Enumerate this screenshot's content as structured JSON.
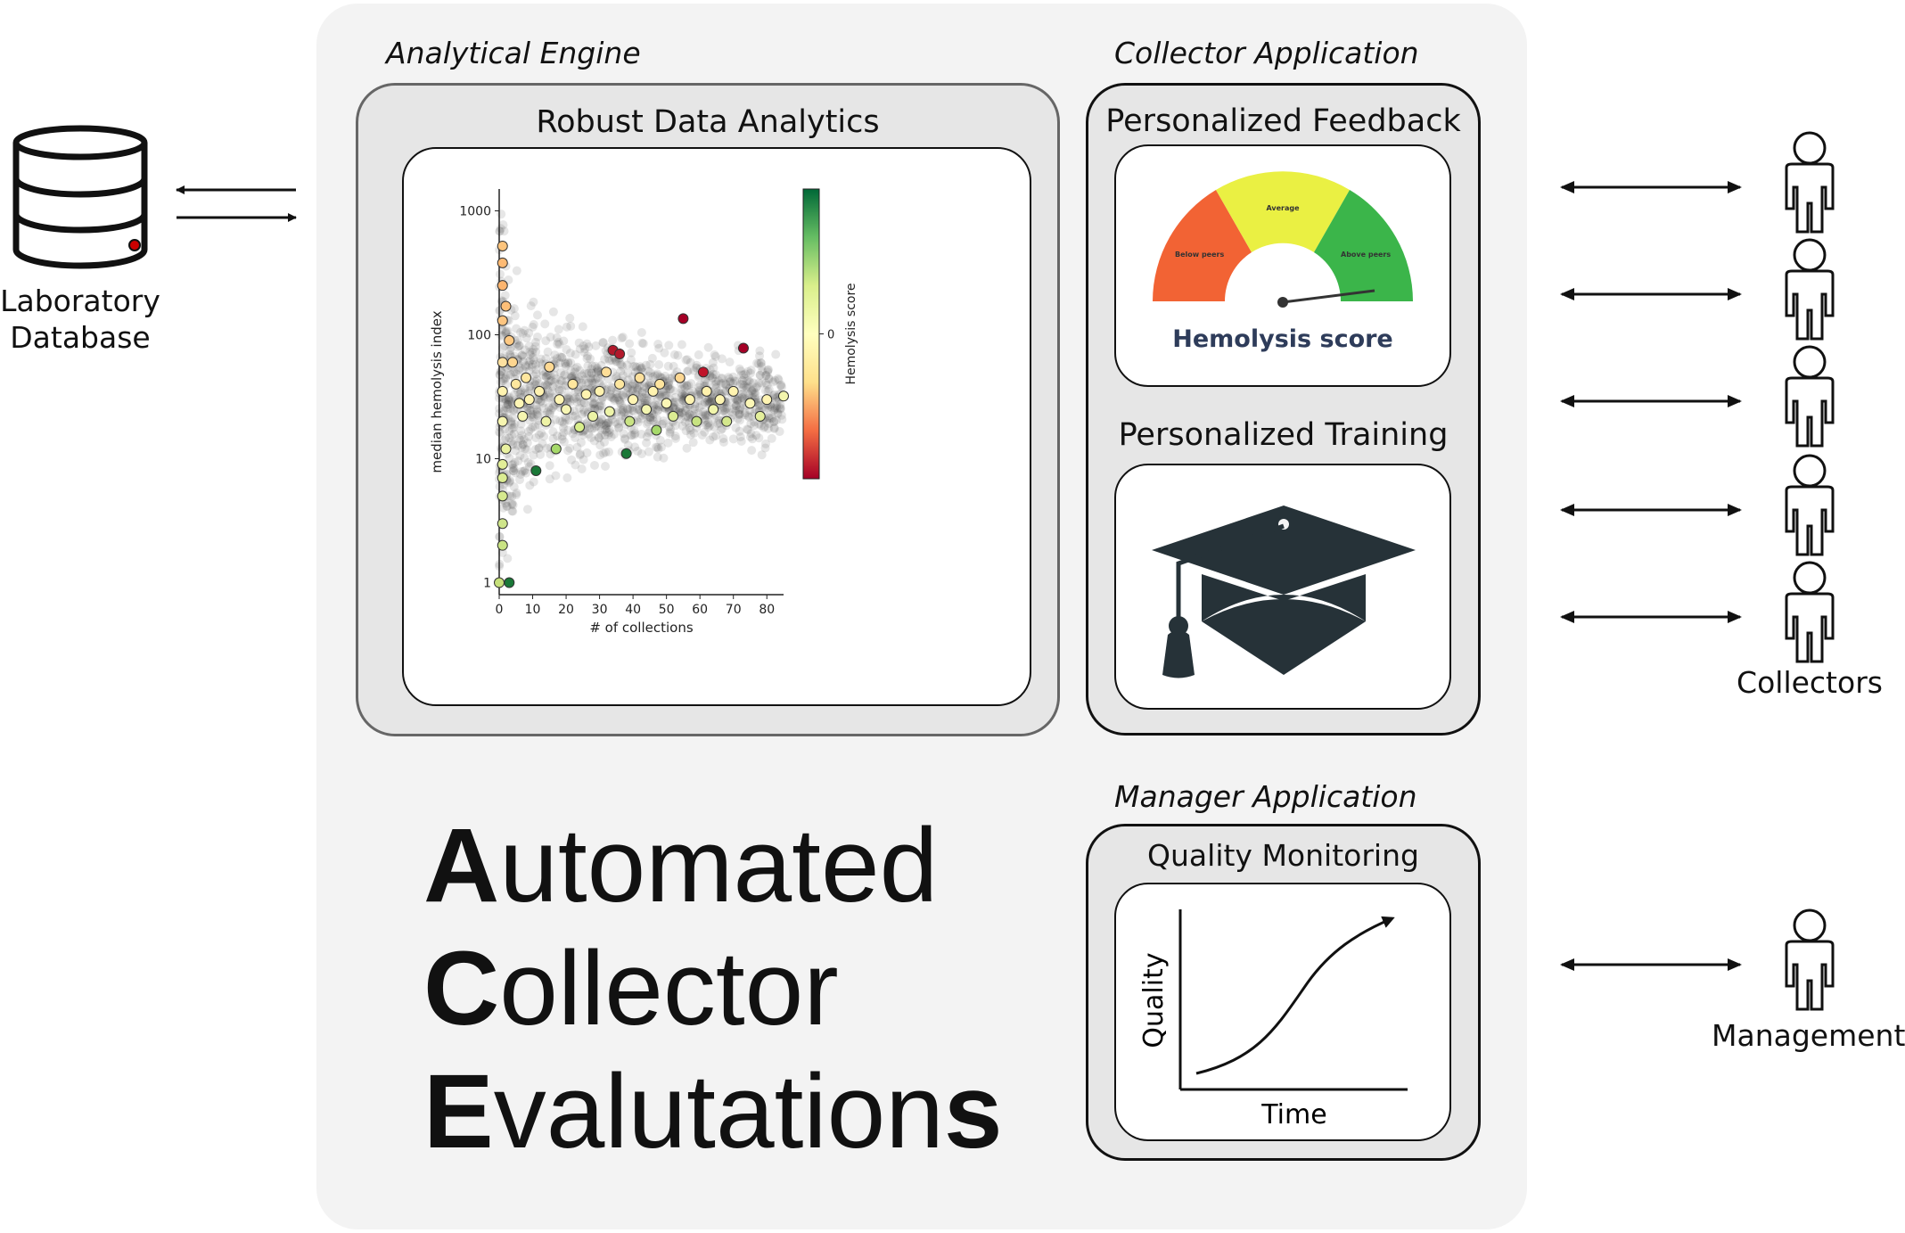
{
  "database": {
    "label_line1": "Laboratory",
    "label_line2": "Database"
  },
  "analytical_engine": {
    "section_label": "Analytical Engine",
    "box_title": "Robust Data Analytics"
  },
  "chart_data": {
    "type": "scatter",
    "xlabel": "# of collections",
    "ylabel": "median hemolysis index",
    "x_ticks": [
      "0",
      "10",
      "20",
      "30",
      "40",
      "50",
      "60",
      "70",
      "80"
    ],
    "y_ticks": [
      "1",
      "10",
      "100",
      "1000"
    ],
    "y_scale": "log",
    "xlim": [
      0,
      85
    ],
    "ylim": [
      0.8,
      1500
    ],
    "colorbar": {
      "label": "Hemolysis score",
      "tick": "0",
      "colormap": [
        "#a50026",
        "#f46d43",
        "#fee08b",
        "#ffffbf",
        "#d9ef8b",
        "#66bd63",
        "#006837"
      ]
    },
    "points": [
      {
        "x": 0,
        "y": 1,
        "c": "#c6e07a"
      },
      {
        "x": 3,
        "y": 1,
        "c": "#1a7837"
      },
      {
        "x": 1,
        "y": 2,
        "c": "#c9e383"
      },
      {
        "x": 1,
        "y": 3,
        "c": "#cfe58a"
      },
      {
        "x": 1,
        "y": 5,
        "c": "#d6e98e"
      },
      {
        "x": 1,
        "y": 7,
        "c": "#dbec92"
      },
      {
        "x": 1,
        "y": 9,
        "c": "#e2ee98"
      },
      {
        "x": 2,
        "y": 12,
        "c": "#e9f1a0"
      },
      {
        "x": 1,
        "y": 20,
        "c": "#f6f5b0"
      },
      {
        "x": 1,
        "y": 35,
        "c": "#fff3b0"
      },
      {
        "x": 1,
        "y": 60,
        "c": "#fde0a0"
      },
      {
        "x": 1,
        "y": 130,
        "c": "#fdc580"
      },
      {
        "x": 1,
        "y": 250,
        "c": "#fdb56f"
      },
      {
        "x": 1,
        "y": 380,
        "c": "#fdba74"
      },
      {
        "x": 1,
        "y": 520,
        "c": "#fdc47c"
      },
      {
        "x": 2,
        "y": 170,
        "c": "#fdbf78"
      },
      {
        "x": 3,
        "y": 90,
        "c": "#fdc983"
      },
      {
        "x": 4,
        "y": 60,
        "c": "#fed690"
      },
      {
        "x": 5,
        "y": 40,
        "c": "#fee79e"
      },
      {
        "x": 6,
        "y": 28,
        "c": "#fff6b5"
      },
      {
        "x": 7,
        "y": 22,
        "c": "#f5f5b0"
      },
      {
        "x": 8,
        "y": 45,
        "c": "#fee69e"
      },
      {
        "x": 9,
        "y": 30,
        "c": "#fff4b2"
      },
      {
        "x": 11,
        "y": 8,
        "c": "#1a7837"
      },
      {
        "x": 12,
        "y": 35,
        "c": "#fff2b0"
      },
      {
        "x": 14,
        "y": 20,
        "c": "#eef3a6"
      },
      {
        "x": 15,
        "y": 55,
        "c": "#fed993"
      },
      {
        "x": 17,
        "y": 12,
        "c": "#a6d96a"
      },
      {
        "x": 18,
        "y": 30,
        "c": "#fff5b3"
      },
      {
        "x": 20,
        "y": 25,
        "c": "#f7f6b4"
      },
      {
        "x": 22,
        "y": 40,
        "c": "#fee69e"
      },
      {
        "x": 24,
        "y": 18,
        "c": "#d9ef8b"
      },
      {
        "x": 26,
        "y": 33,
        "c": "#fff3b0"
      },
      {
        "x": 28,
        "y": 22,
        "c": "#ecf3a5"
      },
      {
        "x": 30,
        "y": 35,
        "c": "#fff2ae"
      },
      {
        "x": 32,
        "y": 50,
        "c": "#fede98"
      },
      {
        "x": 33,
        "y": 24,
        "c": "#eef4a8"
      },
      {
        "x": 34,
        "y": 75,
        "c": "#b2182b"
      },
      {
        "x": 36,
        "y": 70,
        "c": "#b2182b"
      },
      {
        "x": 36,
        "y": 40,
        "c": "#fee79f"
      },
      {
        "x": 38,
        "y": 11,
        "c": "#1a7837"
      },
      {
        "x": 39,
        "y": 20,
        "c": "#c9e383"
      },
      {
        "x": 40,
        "y": 30,
        "c": "#fff4b2"
      },
      {
        "x": 42,
        "y": 45,
        "c": "#fde09c"
      },
      {
        "x": 44,
        "y": 25,
        "c": "#f4f6b1"
      },
      {
        "x": 46,
        "y": 35,
        "c": "#fff3b0"
      },
      {
        "x": 47,
        "y": 17,
        "c": "#a6d96a"
      },
      {
        "x": 48,
        "y": 40,
        "c": "#fee59e"
      },
      {
        "x": 50,
        "y": 28,
        "c": "#fbf6b6"
      },
      {
        "x": 52,
        "y": 22,
        "c": "#dbec92"
      },
      {
        "x": 54,
        "y": 45,
        "c": "#fdd792"
      },
      {
        "x": 55,
        "y": 135,
        "c": "#a50026"
      },
      {
        "x": 57,
        "y": 30,
        "c": "#fff4b2"
      },
      {
        "x": 59,
        "y": 20,
        "c": "#c7e381"
      },
      {
        "x": 61,
        "y": 50,
        "c": "#c0142a"
      },
      {
        "x": 62,
        "y": 35,
        "c": "#fff1ad"
      },
      {
        "x": 64,
        "y": 25,
        "c": "#f1f5ab"
      },
      {
        "x": 66,
        "y": 30,
        "c": "#fff5b3"
      },
      {
        "x": 68,
        "y": 20,
        "c": "#d4e88c"
      },
      {
        "x": 70,
        "y": 35,
        "c": "#fff3b0"
      },
      {
        "x": 73,
        "y": 78,
        "c": "#a50026"
      },
      {
        "x": 75,
        "y": 28,
        "c": "#fbf6b6"
      },
      {
        "x": 78,
        "y": 22,
        "c": "#e4ef9b"
      },
      {
        "x": 80,
        "y": 30,
        "c": "#fff4b2"
      },
      {
        "x": 85,
        "y": 32,
        "c": "#f3f5ad"
      }
    ]
  },
  "collector_app": {
    "section_label": "Collector Application",
    "feedback_title": "Personalized Feedback",
    "gauge": {
      "title": "Hemolysis score",
      "segments": [
        {
          "label": "Below peers",
          "color": "#f26334"
        },
        {
          "label": "Average",
          "color": "#eaf043"
        },
        {
          "label": "Above peers",
          "color": "#3bb54a"
        }
      ]
    },
    "training_title": "Personalized Training",
    "grad_cap_icon": "graduation-cap-icon"
  },
  "manager_app": {
    "section_label": "Manager Application",
    "box_title": "Quality Monitoring",
    "y_axis": "Quality",
    "x_axis": "Time"
  },
  "title": {
    "line1_initial": "A",
    "line1_rest": "utomated",
    "line2_initial": "C",
    "line2_rest": "ollector",
    "line3_initial": "E",
    "line3_rest": "valutation",
    "line3_final": "s"
  },
  "collectors_label": "Collectors",
  "management_label": "Management"
}
